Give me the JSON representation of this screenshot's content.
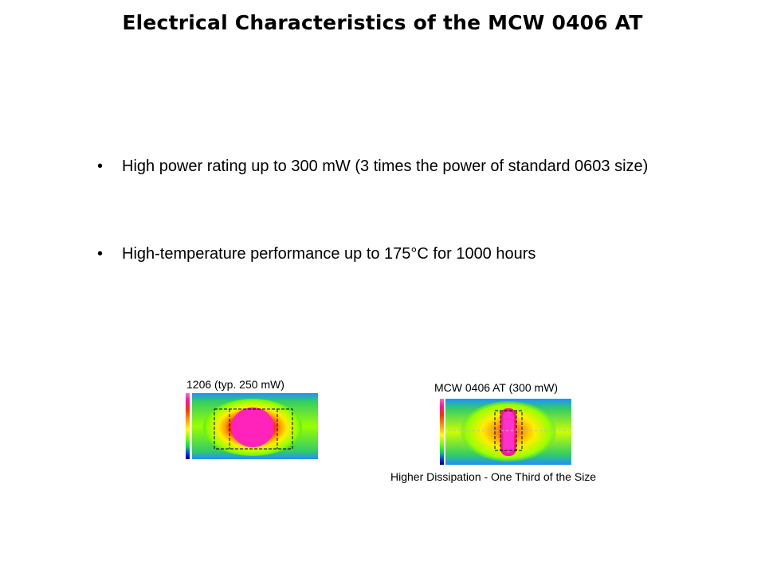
{
  "title": "Electrical Characteristics of the MCW 0406 AT",
  "bullets": [
    {
      "marker": "•",
      "text": "High power rating up to 300 mW (3 times the power of standard 0603 size)"
    },
    {
      "marker": "•",
      "text": "High-temperature performance up to 175°C for 1000 hours"
    }
  ],
  "figures": {
    "left_caption": "1206 (typ. 250 mW)",
    "right_caption": "MCW 0406 AT (300 mW)",
    "bottom_caption": "Higher Dissipation - One Third of the Size"
  },
  "colors": {
    "hot": "#ff1493",
    "warm": "#ff9900",
    "mid": "#ffff00",
    "cool": "#33cc33",
    "cold": "#1e90ff"
  }
}
